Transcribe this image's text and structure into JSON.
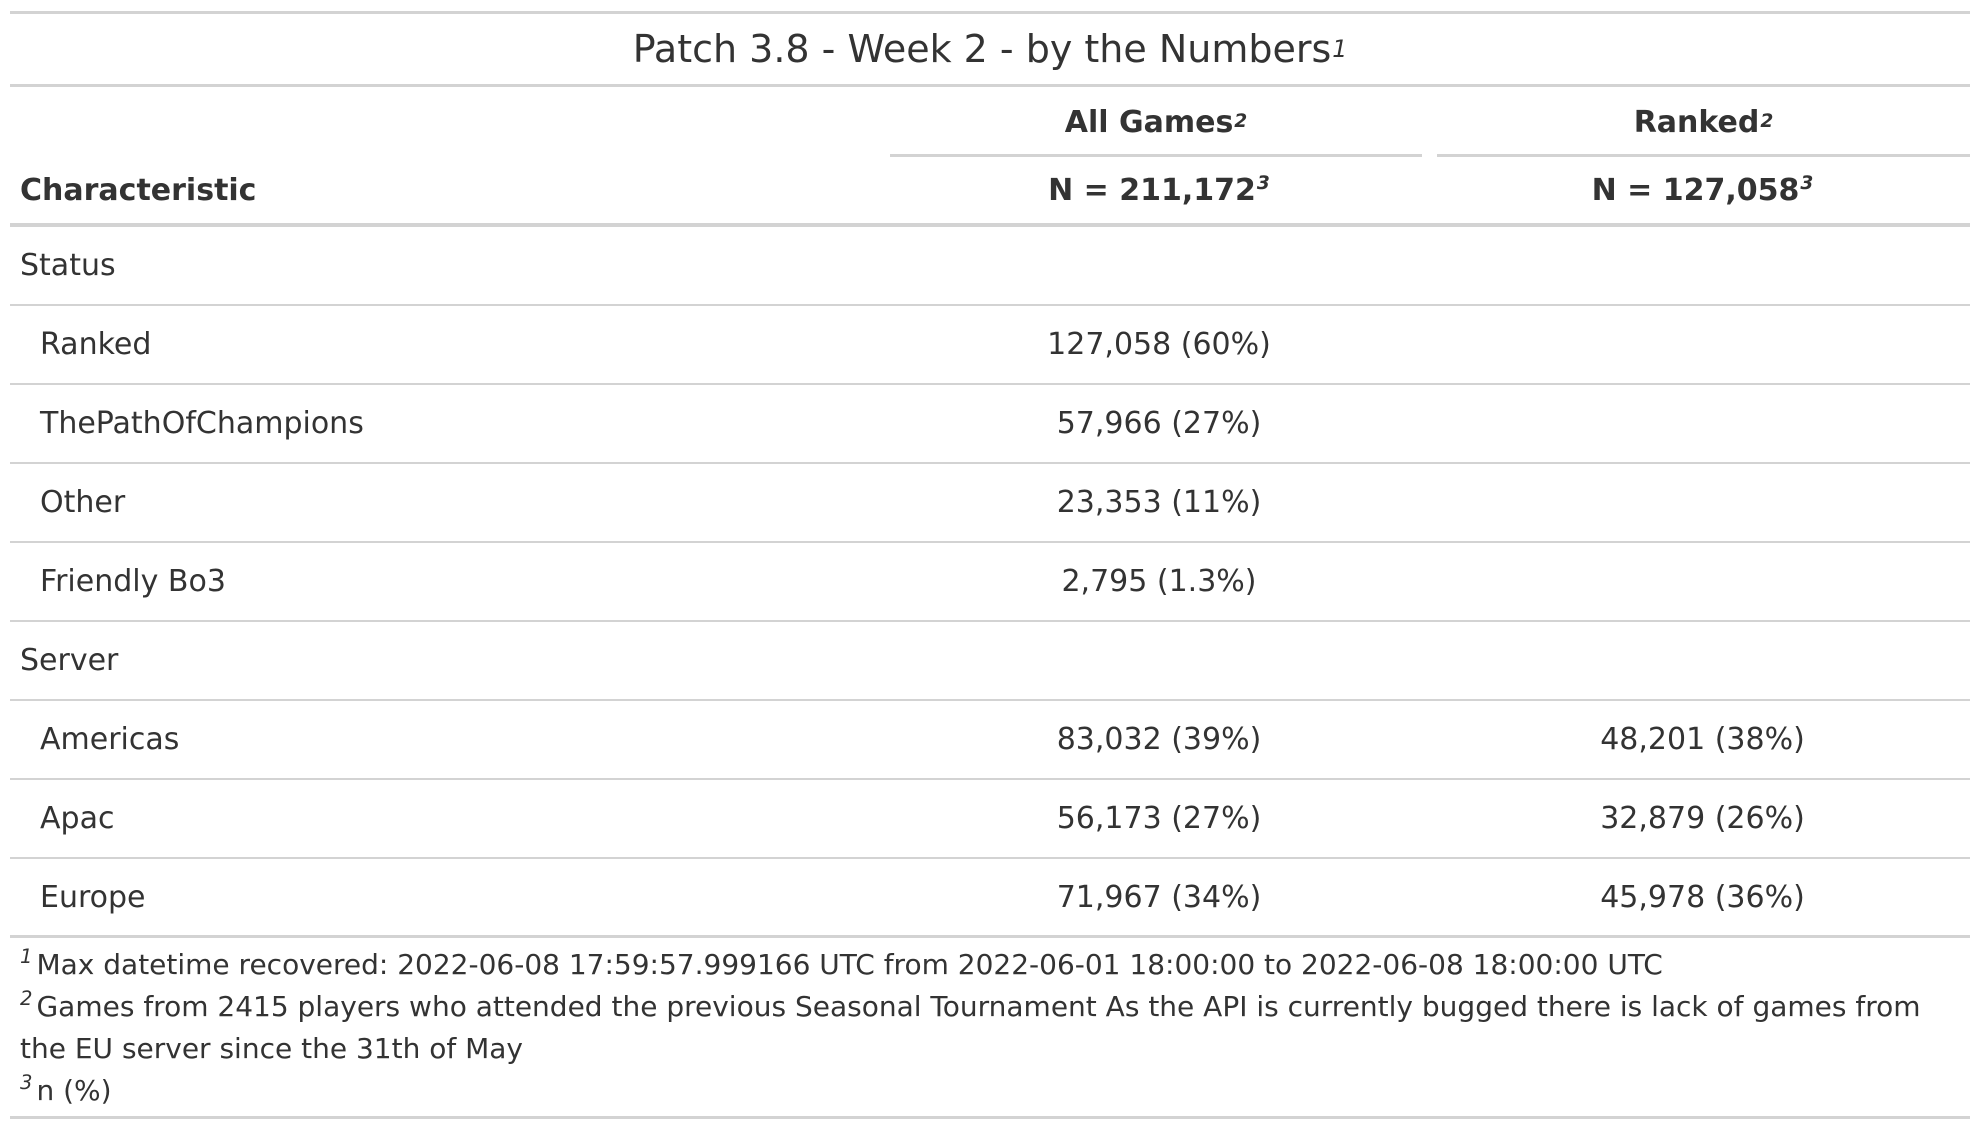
{
  "table": {
    "title": "Patch 3.8 - Week 2 - by the Numbers",
    "title_note": "1",
    "spanners": [
      {
        "label": "All Games",
        "note": "2"
      },
      {
        "label": "Ranked",
        "note": "2"
      }
    ],
    "headers": {
      "characteristic": "Characteristic",
      "col1_n": "N = 211,172",
      "col1_note": "3",
      "col2_n": "N = 127,058",
      "col2_note": "3"
    },
    "groups": [
      {
        "label": "Status",
        "rows": [
          {
            "label": "Ranked",
            "all": "127,058 (60%)",
            "ranked": ""
          },
          {
            "label": "ThePathOfChampions",
            "all": "57,966 (27%)",
            "ranked": ""
          },
          {
            "label": "Other",
            "all": "23,353 (11%)",
            "ranked": ""
          },
          {
            "label": "Friendly Bo3",
            "all": "2,795 (1.3%)",
            "ranked": ""
          }
        ]
      },
      {
        "label": "Server",
        "rows": [
          {
            "label": "Americas",
            "all": "83,032 (39%)",
            "ranked": "48,201 (38%)"
          },
          {
            "label": "Apac",
            "all": "56,173 (27%)",
            "ranked": "32,879 (26%)"
          },
          {
            "label": "Europe",
            "all": "71,967 (34%)",
            "ranked": "45,978 (36%)"
          }
        ]
      }
    ],
    "footnotes": [
      {
        "mark": "1",
        "text": "Max datetime recovered: 2022-06-08 17:59:57.999166 UTC from 2022-06-01 18:00:00 to 2022-06-08 18:00:00 UTC"
      },
      {
        "mark": "2",
        "text": "Games from 2415 players who attended the previous Seasonal Tournament As the API is currently bugged there is lack of games from the EU server since the 31th of May"
      },
      {
        "mark": "3",
        "text": "n (%)"
      }
    ]
  }
}
